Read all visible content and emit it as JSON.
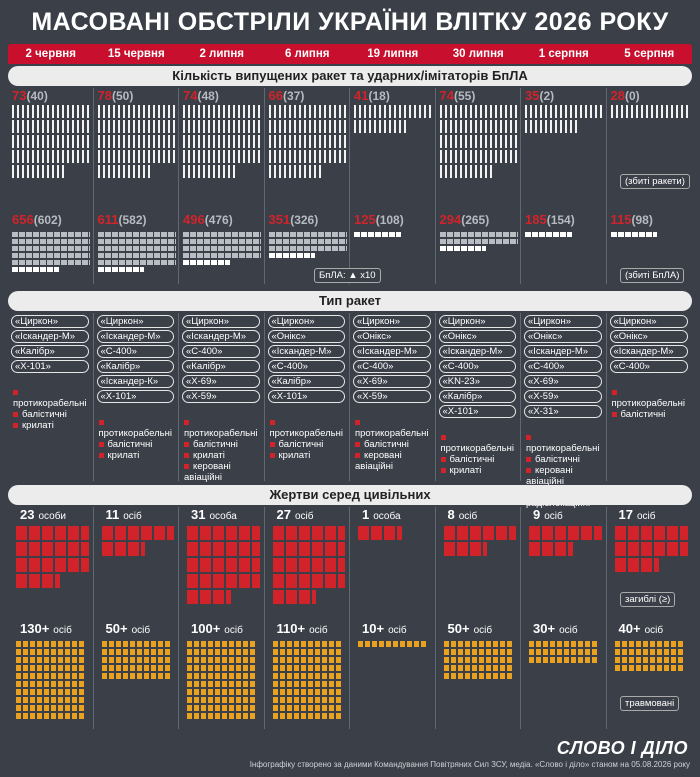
{
  "title": "МАСОВАНІ ОБСТРІЛИ УКРАЇНИ ВЛІТКУ 2026 РОКУ",
  "dates": [
    "2 червня",
    "15 червня",
    "2 липня",
    "6 липня",
    "19 липня",
    "30 липня",
    "1 серпня",
    "5 серпня"
  ],
  "section1": "Кількість випущених ракет та ударних/імітаторів БпЛА",
  "section2": "Тип ракет",
  "section3": "Жертви серед цивільних",
  "missiles": [
    {
      "total": "73",
      "shot": "(40)",
      "rows": 5,
      "shot_rows": 3
    },
    {
      "total": "78",
      "shot": "(50)",
      "rows": 5,
      "shot_rows": 4
    },
    {
      "total": "74",
      "shot": "(48)",
      "rows": 5,
      "shot_rows": 3
    },
    {
      "total": "66",
      "shot": "(37)",
      "rows": 5,
      "shot_rows": 3
    },
    {
      "total": "41",
      "shot": "(18)",
      "rows": 2,
      "shot_rows": 1
    },
    {
      "total": "74",
      "shot": "(55)",
      "rows": 5,
      "shot_rows": 4
    },
    {
      "total": "35",
      "shot": "(2)",
      "rows": 2,
      "shot_rows": 0
    },
    {
      "total": "28",
      "shot": "(0)",
      "rows": 1,
      "shot_rows": 0
    }
  ],
  "drones": [
    {
      "total": "656",
      "shot": "(602)",
      "rows": 6
    },
    {
      "total": "611",
      "shot": "(582)",
      "rows": 6
    },
    {
      "total": "496",
      "shot": "(476)",
      "rows": 5
    },
    {
      "total": "351",
      "shot": "(326)",
      "rows": 4
    },
    {
      "total": "125",
      "shot": "(108)",
      "rows": 1
    },
    {
      "total": "294",
      "shot": "(265)",
      "rows": 3
    },
    {
      "total": "185",
      "shot": "(154)",
      "rows": 1
    },
    {
      "total": "115",
      "shot": "(98)",
      "rows": 1
    }
  ],
  "legend_missile": "(збиті ракети)",
  "legend_drone_scale": "БпЛА:  ▲ x10",
  "legend_drone": "(збиті БпЛА)",
  "rocket_types": [
    [
      "«Циркон»",
      "«Іскандер-М»",
      "«Калібр»",
      "«Х-101»"
    ],
    [
      "«Циркон»",
      "«Іскандер-М»",
      "«С-400»",
      "«Калібр»",
      "«Іскандер-К»",
      "«Х-101»"
    ],
    [
      "«Циркон»",
      "«Іскандер-М»",
      "«С-400»",
      "«Калібр»",
      "«Х-69»",
      "«Х-59»"
    ],
    [
      "«Циркон»",
      "«Онікс»",
      "«Іскандер-М»",
      "«С-400»",
      "«Калібр»",
      "«Х-101»"
    ],
    [
      "«Циркон»",
      "«Онікс»",
      "«Іскандер-М»",
      "«С-400»",
      "«Х-69»",
      "«Х-59»"
    ],
    [
      "«Циркон»",
      "«Онікс»",
      "«Іскандер-М»",
      "«С-400»",
      "«KN-23»",
      "«Калібр»",
      "«Х-101»"
    ],
    [
      "«Циркон»",
      "«Онікс»",
      "«Іскандер-М»",
      "«С-400»",
      "«Х-69»",
      "«Х-59»",
      "«Х-31»"
    ],
    [
      "«Циркон»",
      "«Онікс»",
      "«Іскандер-М»",
      "«С-400»"
    ]
  ],
  "type_legend": [
    [
      "протикорабельні",
      "балістичні",
      "крилаті"
    ],
    [
      "протикорабельні",
      "балістичні",
      "крилаті"
    ],
    [
      "протикорабельні",
      "балістичні",
      "крилаті",
      "керовані авіаційні"
    ],
    [
      "протикорабельні",
      "балістичні",
      "крилаті"
    ],
    [
      "протикорабельні",
      "балістичні",
      "керовані авіаційні"
    ],
    [
      "протикорабельні",
      "балістичні",
      "крилаті"
    ],
    [
      "протикорабельні",
      "балістичні",
      "керовані авіаційні",
      "проти-радіолокаційні"
    ],
    [
      "протикорабельні",
      "балістичні"
    ]
  ],
  "killed": [
    {
      "n": "23",
      "unit": "особи",
      "rows": 4
    },
    {
      "n": "11",
      "unit": "осіб",
      "rows": 2
    },
    {
      "n": "31",
      "unit": "особа",
      "rows": 5
    },
    {
      "n": "27",
      "unit": "осіб",
      "rows": 5
    },
    {
      "n": "1",
      "unit": "особа",
      "rows": 1
    },
    {
      "n": "8",
      "unit": "осіб",
      "rows": 2
    },
    {
      "n": "9",
      "unit": "осіб",
      "rows": 2
    },
    {
      "n": "17",
      "unit": "осіб",
      "rows": 3
    }
  ],
  "killed_legend": "загиблі (≥)",
  "injured": [
    {
      "n": "130+",
      "unit": "осіб",
      "rows": 10
    },
    {
      "n": "50+",
      "unit": "осіб",
      "rows": 5
    },
    {
      "n": "100+",
      "unit": "осіб",
      "rows": 10
    },
    {
      "n": "110+",
      "unit": "осіб",
      "rows": 10
    },
    {
      "n": "10+",
      "unit": "осіб",
      "rows": 1
    },
    {
      "n": "50+",
      "unit": "осіб",
      "rows": 5
    },
    {
      "n": "30+",
      "unit": "осіб",
      "rows": 3
    },
    {
      "n": "40+",
      "unit": "осіб",
      "rows": 4
    }
  ],
  "injured_legend": "травмовані",
  "logo": "СЛОВО І ДІЛО",
  "footer": "Інфографіку створено за даними Командування Повітряних Сил ЗСУ, медіа. «Слово і діло» станом на 05.08.2026 року",
  "colors": {
    "bg": "#3a3f48",
    "accent": "#d2232a",
    "injured": "#e9a21f"
  }
}
